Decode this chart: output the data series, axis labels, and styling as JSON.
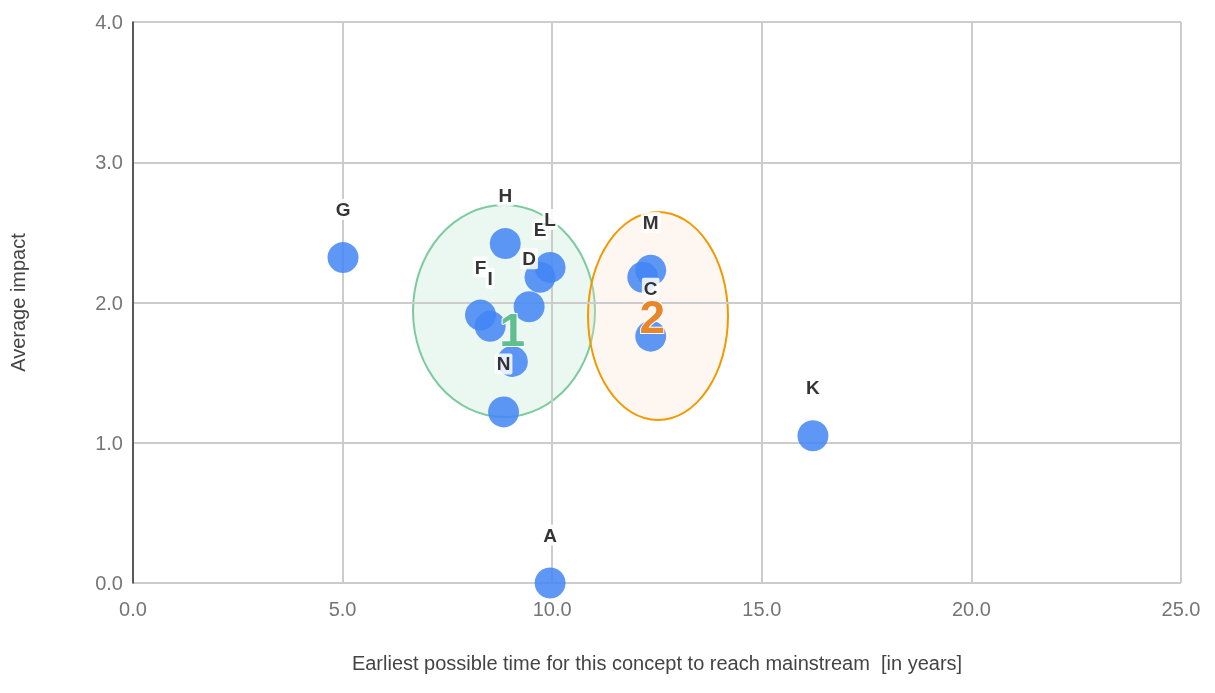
{
  "chart_data": {
    "type": "scatter",
    "xlabel": "Earliest possible time for this concept to reach mainstream  [in years]",
    "ylabel": "Average impact",
    "x": [
      9.95,
      12.16,
      12.35,
      9.45,
      9.71,
      8.29,
      5.01,
      8.88,
      8.52,
      9.05,
      16.22,
      9.95,
      12.35,
      8.84
    ],
    "values": [
      0,
      2.18,
      1.76,
      1.97,
      2.18,
      1.91,
      2.32,
      2.42,
      1.83,
      1.58,
      1.05,
      2.25,
      2.23,
      1.22
    ],
    "value_labels": [
      "A",
      null,
      "C",
      "D",
      "E",
      "F",
      "G",
      "H",
      "I",
      null,
      "K",
      "L",
      "M",
      "N"
    ],
    "color": "#4285f4",
    "marker": "circle",
    "xlim": [
      0,
      25
    ],
    "xticks": [
      {
        "value": 0,
        "label": "0.0"
      },
      {
        "value": 5,
        "label": "5.0"
      },
      {
        "value": 10,
        "label": "10.0"
      },
      {
        "value": 15,
        "label": "15.0"
      },
      {
        "value": 20,
        "label": "20.0"
      },
      {
        "value": 25,
        "label": "25.0"
      }
    ],
    "ylim": [
      0,
      4
    ],
    "yticks": [
      {
        "value": 0,
        "label": "0.0"
      },
      {
        "value": 1,
        "label": "1.0"
      },
      {
        "value": 2,
        "label": "2.0"
      },
      {
        "value": 3,
        "label": "3.0"
      },
      {
        "value": 4,
        "label": "4.0"
      }
    ],
    "grid": true,
    "annotations": [
      "1",
      "2"
    ]
  }
}
